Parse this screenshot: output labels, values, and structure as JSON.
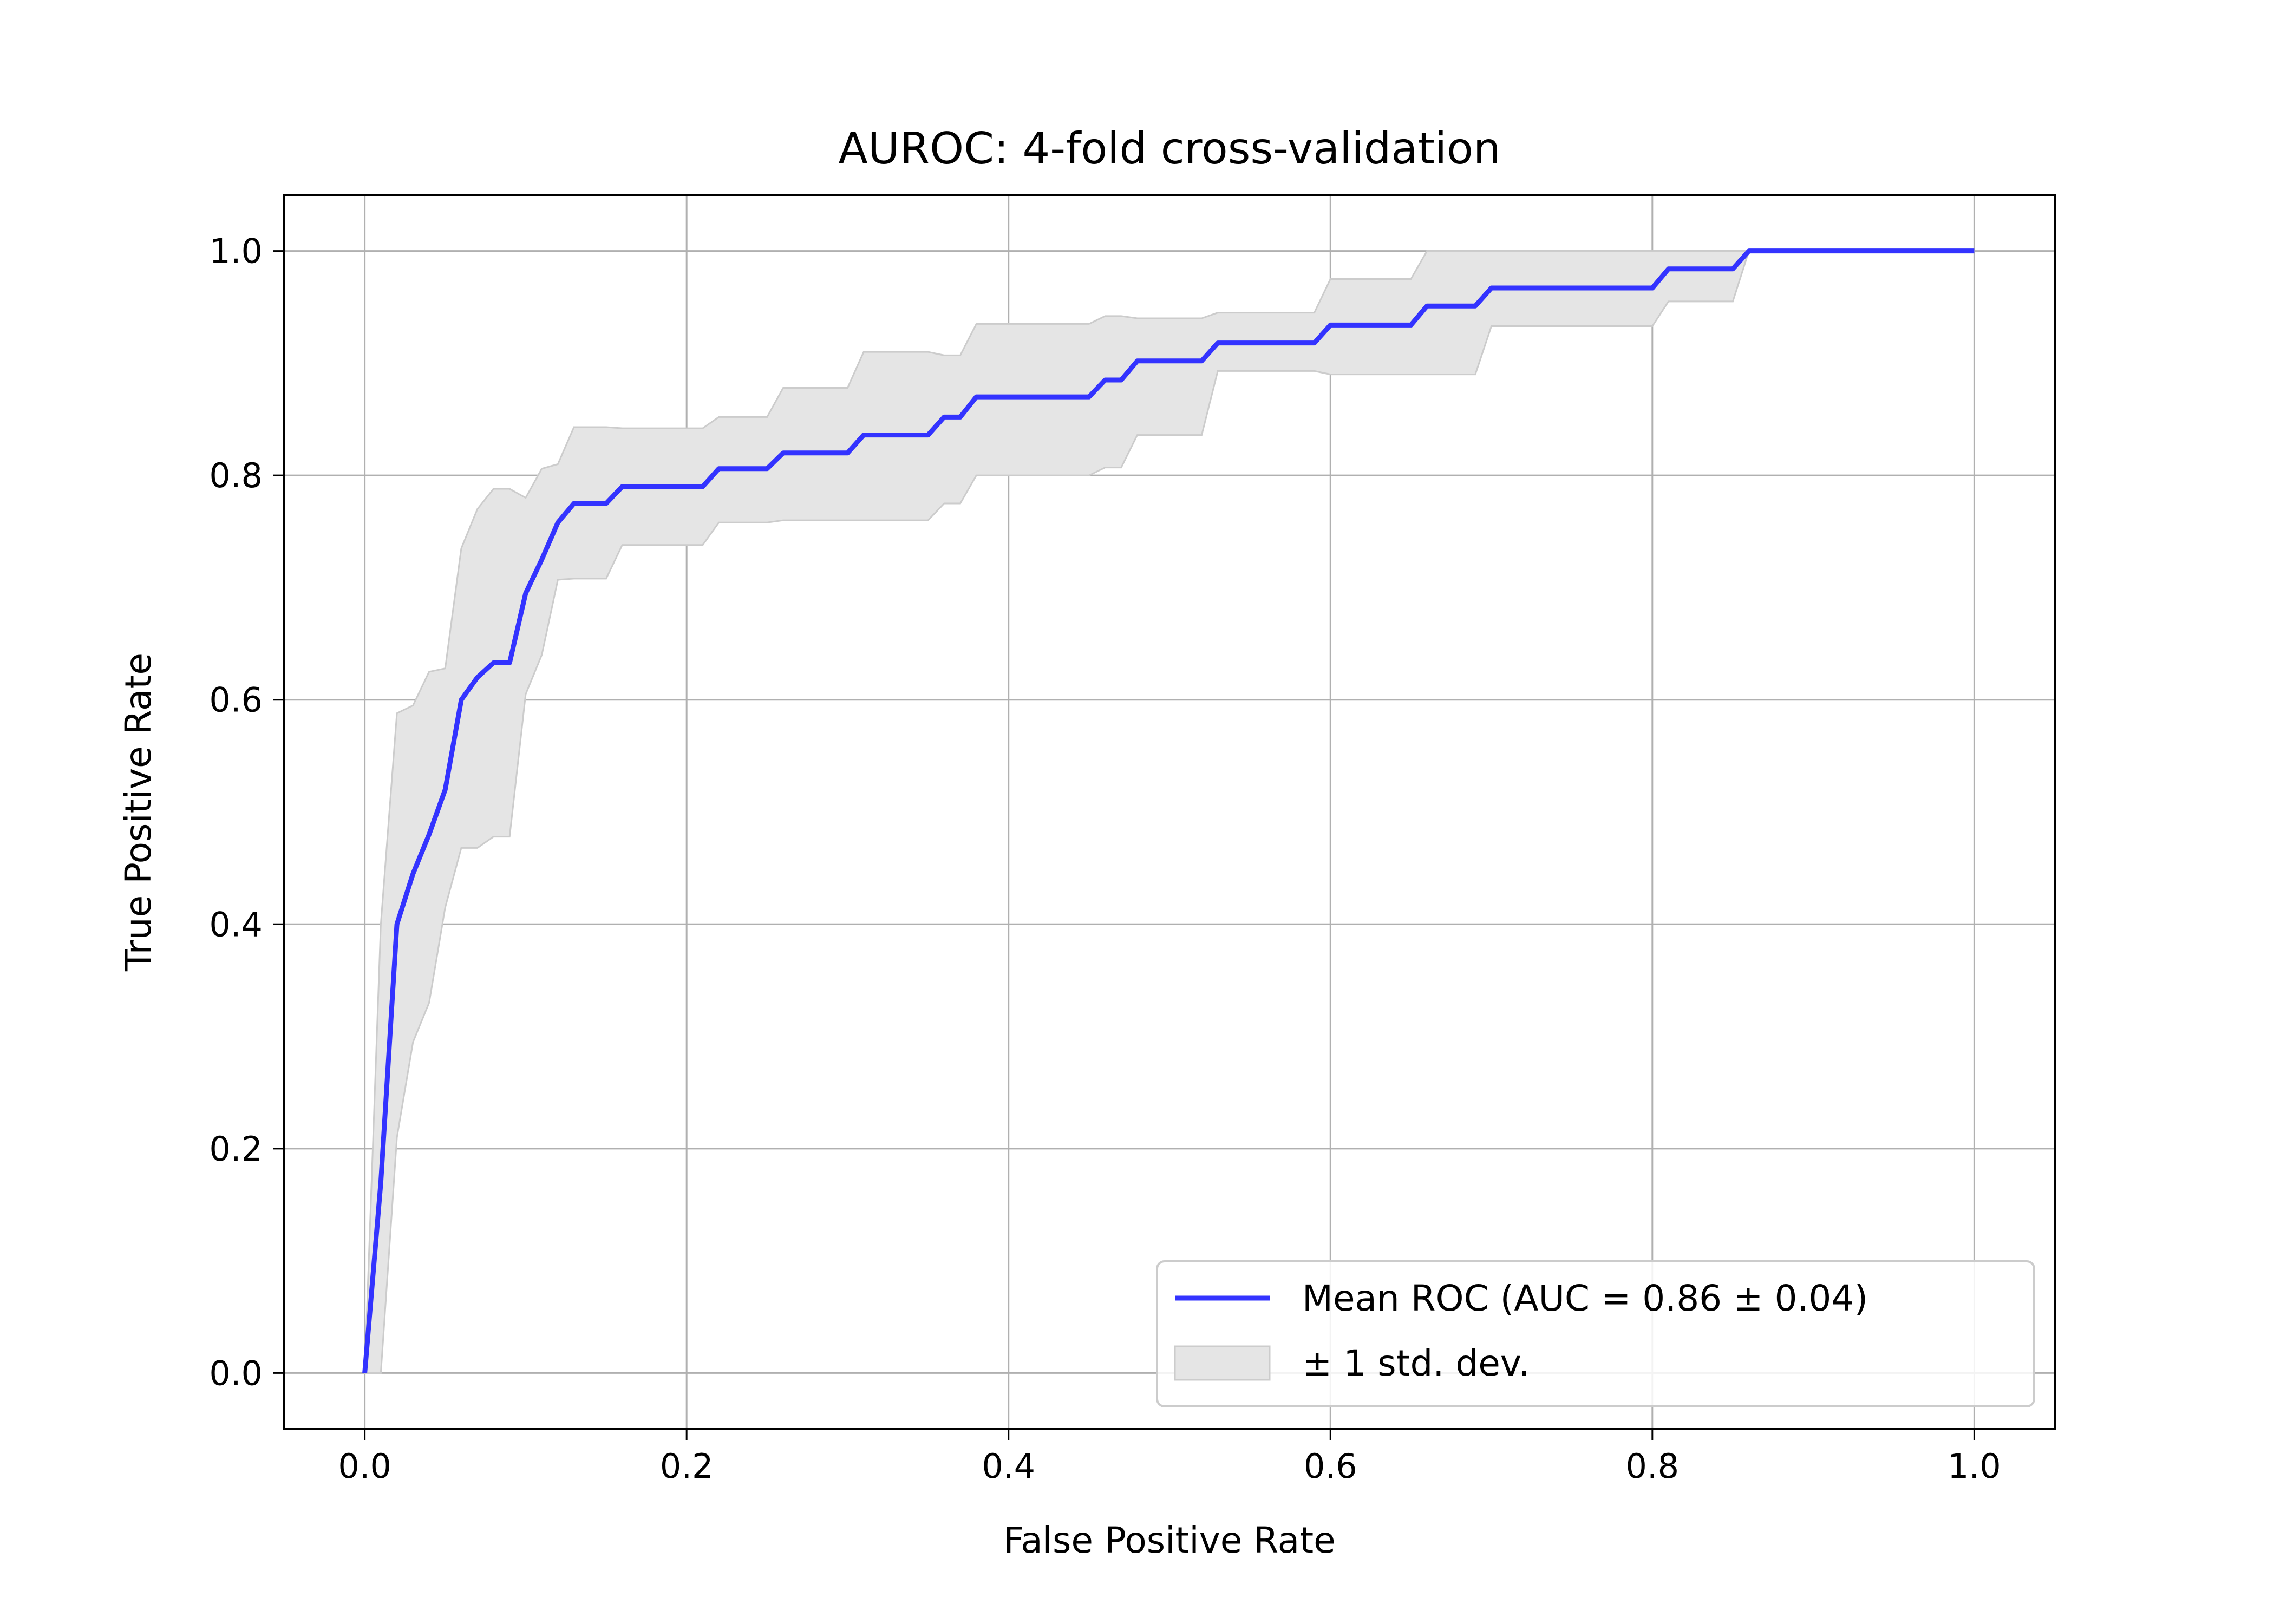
{
  "chart_data": {
    "type": "line",
    "title": "AUROC: 4-fold cross-validation",
    "xlabel": "False Positive Rate",
    "ylabel": "True Positive Rate",
    "xlim": [
      -0.05,
      1.05
    ],
    "ylim": [
      -0.05,
      1.05
    ],
    "xticks": [
      "0.0",
      "0.2",
      "0.4",
      "0.6",
      "0.8",
      "1.0"
    ],
    "yticks": [
      "0.0",
      "0.2",
      "0.4",
      "0.6",
      "0.8",
      "1.0"
    ],
    "grid": true,
    "legend_position": "lower-right",
    "colors": {
      "mean_line": "#3333ff",
      "band_fill": "#e5e5e5",
      "band_edge": "#cccccc",
      "grid": "#b0b0b0"
    },
    "series": [
      {
        "name": "Mean ROC (AUC = 0.86 ± 0.04)",
        "x": [
          0.0,
          0.01,
          0.02,
          0.03,
          0.04,
          0.05,
          0.06,
          0.07,
          0.08,
          0.09,
          0.1,
          0.11,
          0.12,
          0.13,
          0.15,
          0.16,
          0.21,
          0.22,
          0.25,
          0.26,
          0.3,
          0.31,
          0.35,
          0.36,
          0.37,
          0.38,
          0.45,
          0.46,
          0.47,
          0.48,
          0.52,
          0.53,
          0.59,
          0.6,
          0.65,
          0.66,
          0.69,
          0.7,
          0.8,
          0.81,
          0.85,
          0.86,
          1.0
        ],
        "y": [
          0.0,
          0.17,
          0.4,
          0.445,
          0.48,
          0.52,
          0.6,
          0.62,
          0.633,
          0.633,
          0.695,
          0.725,
          0.758,
          0.775,
          0.775,
          0.79,
          0.79,
          0.806,
          0.806,
          0.82,
          0.82,
          0.836,
          0.836,
          0.852,
          0.852,
          0.87,
          0.87,
          0.885,
          0.885,
          0.902,
          0.902,
          0.918,
          0.918,
          0.934,
          0.934,
          0.951,
          0.951,
          0.967,
          0.967,
          0.984,
          0.984,
          1.0,
          1.0
        ]
      }
    ],
    "band": {
      "name": "± 1 std. dev.",
      "x": [
        0.0,
        0.01,
        0.02,
        0.03,
        0.04,
        0.05,
        0.06,
        0.07,
        0.08,
        0.09,
        0.1,
        0.11,
        0.12,
        0.13,
        0.15,
        0.16,
        0.21,
        0.22,
        0.25,
        0.26,
        0.3,
        0.31,
        0.35,
        0.36,
        0.37,
        0.38,
        0.45,
        0.46,
        0.47,
        0.48,
        0.52,
        0.53,
        0.59,
        0.6,
        0.65,
        0.66,
        0.69,
        0.7,
        0.8,
        0.81,
        0.85,
        0.86,
        1.0
      ],
      "upper": [
        0.0,
        0.4,
        0.588,
        0.595,
        0.625,
        0.628,
        0.735,
        0.77,
        0.788,
        0.788,
        0.78,
        0.806,
        0.81,
        0.843,
        0.843,
        0.842,
        0.842,
        0.852,
        0.852,
        0.878,
        0.878,
        0.91,
        0.91,
        0.907,
        0.907,
        0.935,
        0.935,
        0.942,
        0.942,
        0.94,
        0.94,
        0.945,
        0.945,
        0.975,
        0.975,
        1.0,
        1.0,
        1.0,
        1.0,
        1.0,
        1.0,
        1.0,
        1.0
      ],
      "lower": [
        0.0,
        0.0,
        0.21,
        0.295,
        0.33,
        0.415,
        0.468,
        0.468,
        0.478,
        0.478,
        0.605,
        0.64,
        0.707,
        0.708,
        0.708,
        0.738,
        0.738,
        0.758,
        0.758,
        0.76,
        0.76,
        0.76,
        0.76,
        0.775,
        0.775,
        0.8,
        0.8,
        0.807,
        0.807,
        0.836,
        0.836,
        0.893,
        0.893,
        0.89,
        0.89,
        0.89,
        0.89,
        0.933,
        0.933,
        0.955,
        0.955,
        1.0,
        1.0
      ]
    }
  }
}
